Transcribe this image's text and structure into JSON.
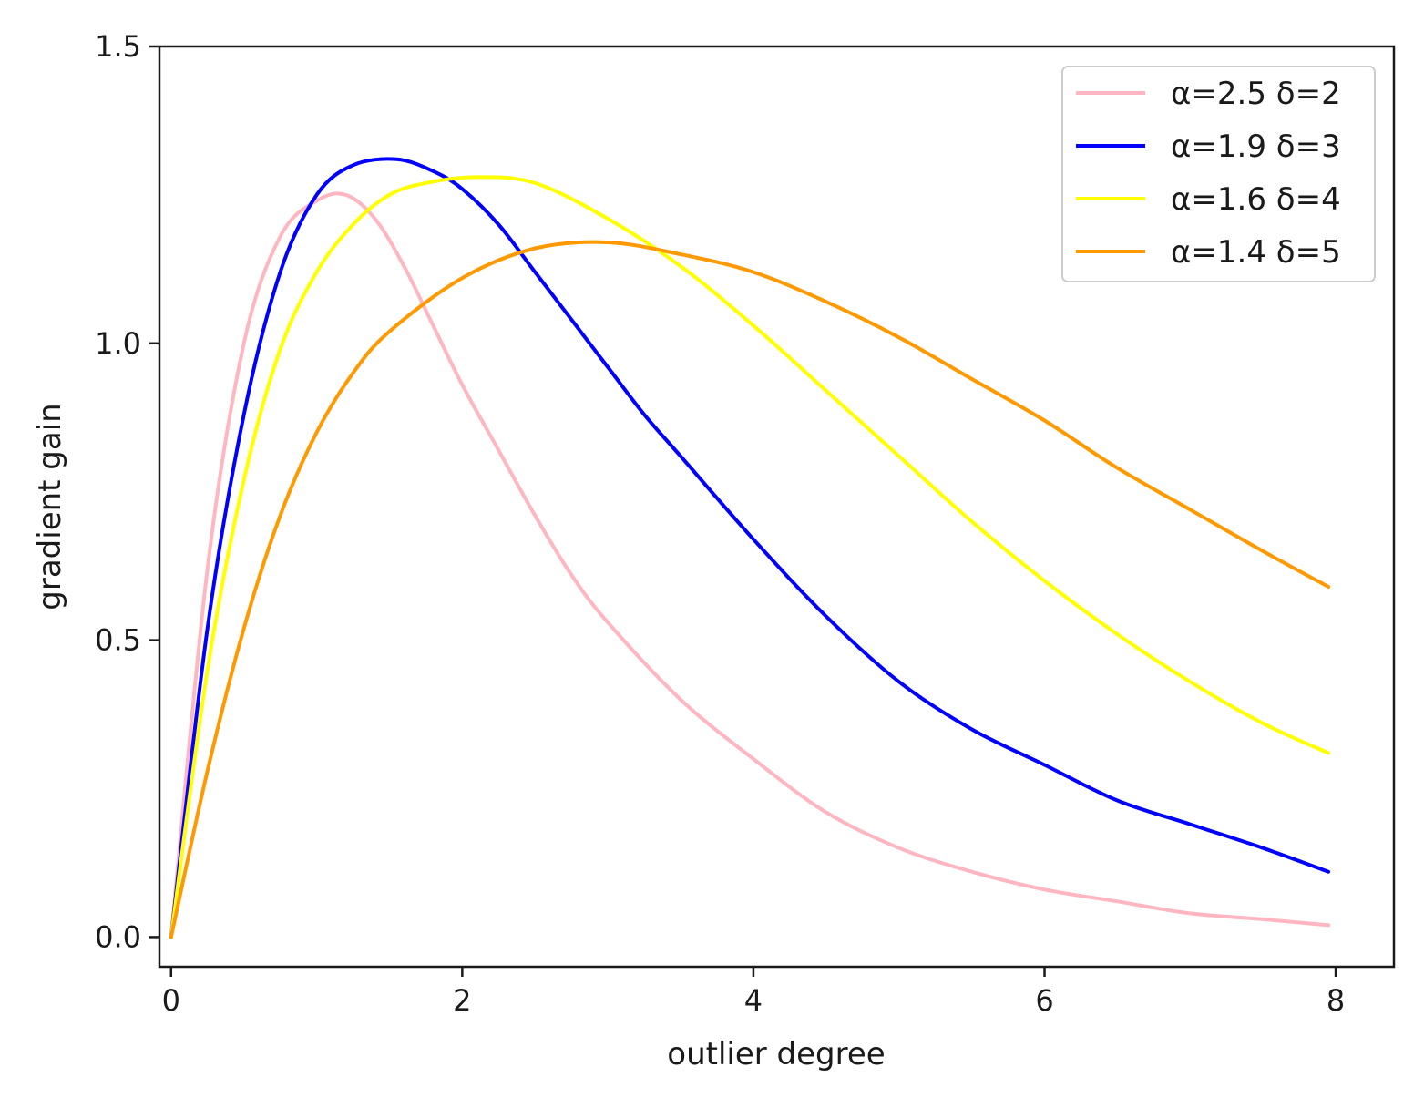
{
  "chart_data": {
    "type": "line",
    "title": "",
    "xlabel": "outlier degree",
    "ylabel": "gradient gain",
    "xlim": [
      -0.08,
      8.4
    ],
    "ylim": [
      -0.05,
      1.5
    ],
    "xticks": [
      0,
      2,
      4,
      6,
      8
    ],
    "xtick_labels": [
      "0",
      "2",
      "4",
      "6",
      "8"
    ],
    "yticks": [
      0.0,
      0.5,
      1.0,
      1.5
    ],
    "ytick_labels": [
      "0.0",
      "0.5",
      "1.0",
      "1.5"
    ],
    "grid": false,
    "legend_position": "top-right",
    "series": [
      {
        "name": "α=2.5 δ=2",
        "color": "#ffb6c1",
        "x": [
          0,
          0.25,
          0.5,
          0.75,
          1.0,
          1.2,
          1.4,
          1.6,
          1.8,
          2.0,
          2.25,
          2.5,
          2.75,
          3.0,
          3.5,
          4.0,
          4.5,
          5.0,
          5.5,
          6.0,
          6.5,
          7.0,
          7.5,
          7.95
        ],
        "y": [
          0.0,
          0.62,
          1.0,
          1.18,
          1.24,
          1.25,
          1.21,
          1.13,
          1.03,
          0.93,
          0.82,
          0.71,
          0.61,
          0.53,
          0.4,
          0.3,
          0.21,
          0.15,
          0.11,
          0.08,
          0.06,
          0.04,
          0.03,
          0.02
        ]
      },
      {
        "name": "α=1.9 δ=3",
        "color": "#0000ff",
        "x": [
          0,
          0.25,
          0.5,
          0.75,
          1.0,
          1.25,
          1.55,
          1.8,
          2.0,
          2.25,
          2.5,
          2.75,
          3.0,
          3.25,
          3.5,
          4.0,
          4.5,
          5.0,
          5.5,
          6.0,
          6.5,
          7.0,
          7.5,
          7.95
        ],
        "y": [
          0.0,
          0.52,
          0.88,
          1.12,
          1.25,
          1.3,
          1.31,
          1.29,
          1.26,
          1.2,
          1.12,
          1.04,
          0.96,
          0.88,
          0.81,
          0.67,
          0.54,
          0.43,
          0.35,
          0.29,
          0.23,
          0.19,
          0.15,
          0.11
        ]
      },
      {
        "name": "α=1.6 δ=4",
        "color": "#ffff00",
        "x": [
          0,
          0.25,
          0.5,
          0.75,
          1.0,
          1.25,
          1.5,
          1.75,
          2.1,
          2.5,
          3.0,
          3.5,
          4.0,
          4.5,
          5.0,
          5.5,
          6.0,
          6.5,
          7.0,
          7.5,
          7.95
        ],
        "y": [
          0.0,
          0.45,
          0.77,
          0.99,
          1.12,
          1.2,
          1.25,
          1.27,
          1.28,
          1.27,
          1.21,
          1.13,
          1.03,
          0.92,
          0.81,
          0.7,
          0.6,
          0.51,
          0.43,
          0.36,
          0.31
        ]
      },
      {
        "name": "α=1.4 δ=5",
        "color": "#ff9900",
        "x": [
          0,
          0.25,
          0.5,
          0.75,
          1.0,
          1.25,
          1.5,
          2.0,
          2.5,
          3.0,
          3.5,
          4.0,
          4.5,
          5.0,
          5.5,
          6.0,
          6.5,
          7.0,
          7.5,
          7.95
        ],
        "y": [
          0.0,
          0.28,
          0.52,
          0.71,
          0.85,
          0.95,
          1.02,
          1.11,
          1.16,
          1.17,
          1.15,
          1.12,
          1.07,
          1.01,
          0.94,
          0.87,
          0.79,
          0.72,
          0.65,
          0.59
        ]
      }
    ]
  }
}
